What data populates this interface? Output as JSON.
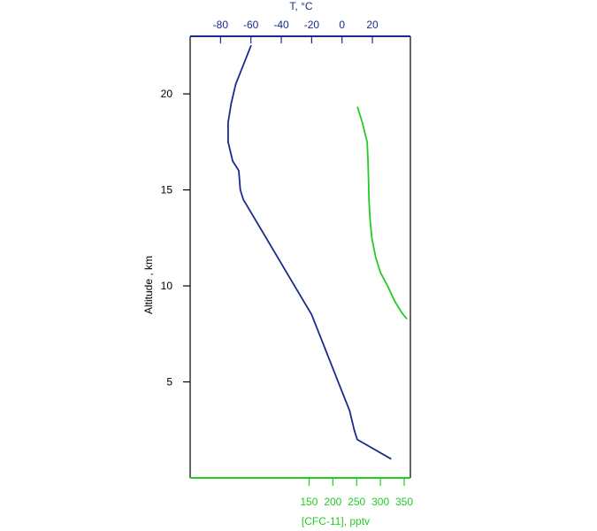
{
  "chart_data": {
    "type": "line",
    "title": "",
    "grid": false,
    "colors": {
      "temperature": "#1a2a8c",
      "cfc": "#22cc22",
      "left_axis": "#000000"
    },
    "y_axis": {
      "label": "Altitude , km",
      "range": [
        0,
        23
      ],
      "ticks": [
        5,
        10,
        15,
        20
      ],
      "tick_labels": [
        "5",
        "10",
        "15",
        "20"
      ]
    },
    "x_top": {
      "label": "T,  °C",
      "range": [
        -100,
        45
      ],
      "ticks": [
        -80,
        -60,
        -40,
        -20,
        0,
        20
      ],
      "tick_labels": [
        "-80",
        "-60",
        "-40",
        "-20",
        "0",
        "20"
      ]
    },
    "x_bottom": {
      "label": "[CFC-11], pptv",
      "range": [
        -100,
        363
      ],
      "ticks": [
        150,
        200,
        250,
        300,
        350
      ],
      "tick_labels": [
        "150",
        "200",
        "250",
        "300",
        "350"
      ]
    },
    "series": [
      {
        "axis": "top",
        "x": [
          32,
          10,
          8,
          5,
          -5,
          -20,
          -35,
          -50,
          -65,
          -67,
          -68,
          -72,
          -75,
          -75,
          -73,
          -70,
          -60
        ],
        "y": [
          1,
          2,
          2.5,
          3.5,
          5.5,
          8.5,
          10.5,
          12.5,
          14.5,
          15,
          16,
          16.5,
          17.5,
          18.5,
          19.5,
          20.5,
          22.5
        ]
      },
      {
        "axis": "bottom",
        "x": [
          355,
          345,
          330,
          315,
          300,
          290,
          282,
          278,
          276,
          275,
          274,
          272,
          262,
          252
        ],
        "y": [
          8.3,
          8.6,
          9.2,
          10,
          10.7,
          11.5,
          12.5,
          13.5,
          14.5,
          15.5,
          16.5,
          17.5,
          18.5,
          19.3
        ]
      }
    ]
  }
}
